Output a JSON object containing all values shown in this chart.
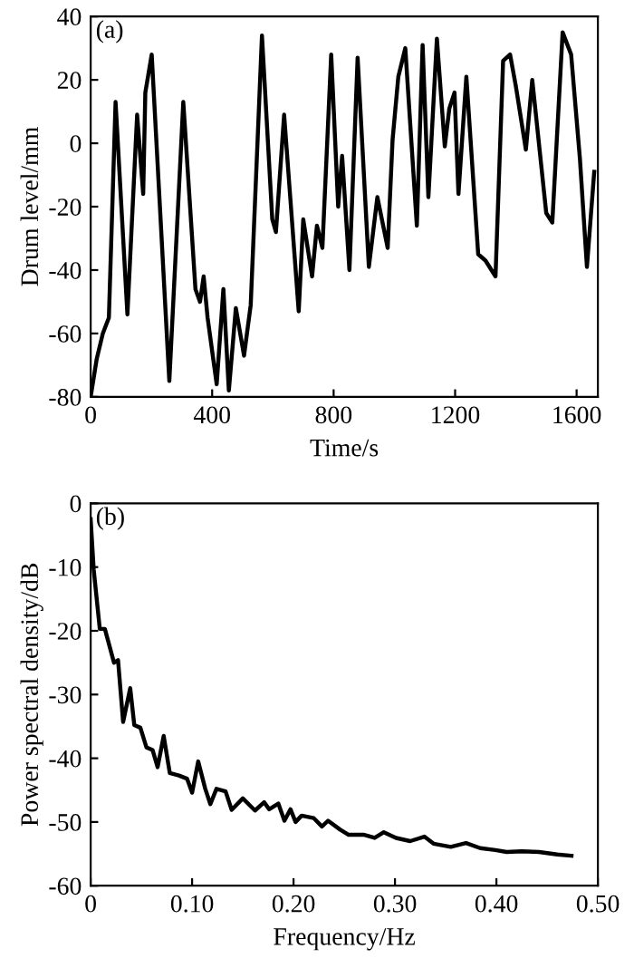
{
  "chart_data": [
    {
      "type": "line",
      "xlabel": "Time/s",
      "ylabel": "Drum level/mm",
      "annotations": [
        "(a)"
      ],
      "xlim": [
        0,
        1670
      ],
      "ylim": [
        -80,
        40
      ],
      "xticks": [
        0,
        400,
        800,
        1200,
        1600
      ],
      "yticks": [
        -80,
        -60,
        -40,
        -20,
        0,
        20,
        40
      ],
      "grid": false,
      "legend": false,
      "series": [
        {
          "color": "#000000",
          "x": [
            0,
            20,
            40,
            60,
            82,
            121,
            153,
            173,
            180,
            201,
            259,
            305,
            345,
            360,
            372,
            385,
            415,
            437,
            455,
            478,
            505,
            527,
            564,
            598,
            610,
            637,
            685,
            700,
            729,
            745,
            763,
            792,
            815,
            828,
            852,
            879,
            916,
            944,
            978,
            994,
            1013,
            1036,
            1074,
            1093,
            1112,
            1140,
            1166,
            1181,
            1198,
            1211,
            1237,
            1276,
            1300,
            1333,
            1358,
            1381,
            1400,
            1433,
            1454,
            1500,
            1520,
            1554,
            1582,
            1611,
            1634,
            1658
          ],
          "values": [
            -80,
            -68,
            -60,
            -55,
            13,
            -54,
            9,
            -16,
            16,
            28,
            -75,
            13,
            -46,
            -50,
            -42,
            -55,
            -76,
            -46,
            -78,
            -52,
            -67,
            -51,
            34,
            -24,
            -28,
            9,
            -53,
            -24,
            -42,
            -26,
            -33,
            28,
            -20,
            -4,
            -40,
            27,
            -39,
            -17,
            -33,
            1,
            21,
            30,
            -26,
            31,
            -17,
            33,
            -1,
            11,
            16,
            -16,
            21,
            -35,
            -37,
            -42,
            26,
            28,
            18,
            -2,
            20,
            -22,
            -25,
            35,
            28,
            -5,
            -39,
            -9
          ]
        }
      ]
    },
    {
      "type": "line",
      "xlabel": "Frequency/Hz",
      "ylabel": "Power spectral density/dB",
      "annotations": [
        "(b)"
      ],
      "xlim": [
        0,
        0.5
      ],
      "ylim": [
        -60,
        0
      ],
      "xticks": [
        {
          "value": 0,
          "label": "0"
        },
        {
          "value": 0.1,
          "label": "0.10"
        },
        {
          "value": 0.2,
          "label": "0.20"
        },
        {
          "value": 0.3,
          "label": "0.30"
        },
        {
          "value": 0.4,
          "label": "0.40"
        },
        {
          "value": 0.5,
          "label": "0.50"
        }
      ],
      "yticks": [
        -60,
        -50,
        -40,
        -30,
        -20,
        -10,
        0
      ],
      "grid": false,
      "legend": false,
      "series": [
        {
          "color": "#000000",
          "x": [
            0,
            0.003,
            0.009,
            0.014,
            0.023,
            0.027,
            0.032,
            0.039,
            0.043,
            0.049,
            0.055,
            0.061,
            0.066,
            0.072,
            0.078,
            0.087,
            0.095,
            0.1,
            0.106,
            0.113,
            0.118,
            0.124,
            0.133,
            0.139,
            0.15,
            0.162,
            0.171,
            0.176,
            0.185,
            0.191,
            0.197,
            0.202,
            0.208,
            0.22,
            0.228,
            0.234,
            0.246,
            0.254,
            0.269,
            0.28,
            0.289,
            0.301,
            0.315,
            0.329,
            0.338,
            0.355,
            0.37,
            0.384,
            0.399,
            0.41,
            0.425,
            0.442,
            0.46,
            0.474
          ],
          "values": [
            -2.5,
            -10.4,
            -19.7,
            -19.7,
            -25,
            -24.6,
            -34.3,
            -29,
            -34.8,
            -35.2,
            -38.3,
            -38.7,
            -41.4,
            -36.5,
            -42.3,
            -42.7,
            -43.2,
            -45.4,
            -40.5,
            -44.8,
            -47.2,
            -44.8,
            -45.2,
            -48.1,
            -46.3,
            -48.2,
            -46.9,
            -48,
            -47.1,
            -49.8,
            -48,
            -50,
            -49,
            -49.4,
            -50.7,
            -49.8,
            -51.2,
            -52,
            -52,
            -52.5,
            -51.6,
            -52.5,
            -53,
            -52.3,
            -53.4,
            -53.9,
            -53.3,
            -54.1,
            -54.4,
            -54.7,
            -54.6,
            -54.7,
            -55.1,
            -55.3
          ]
        }
      ]
    }
  ]
}
